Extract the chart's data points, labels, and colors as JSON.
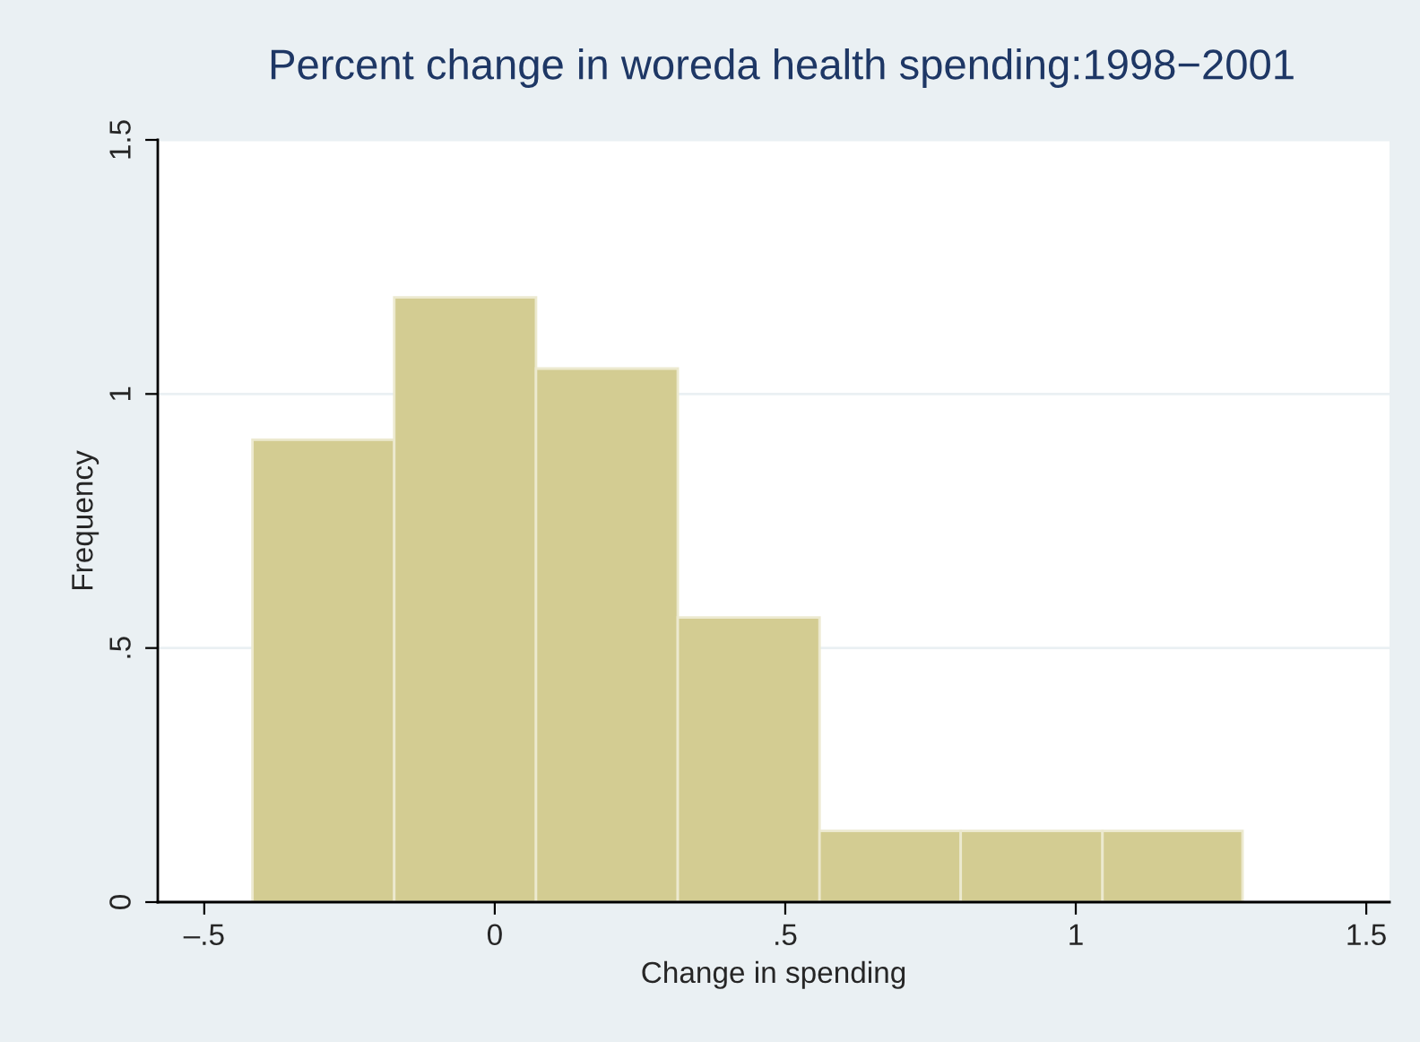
{
  "chart_data": {
    "type": "histogram",
    "title": "Percent change in woreda health spending:1998−2001",
    "xlabel": "Change in spending",
    "ylabel": "Frequency",
    "bins": [
      -0.417,
      -0.173,
      0.071,
      0.315,
      0.559,
      0.802,
      1.046,
      1.287
    ],
    "values": [
      0.91,
      1.19,
      1.05,
      0.56,
      0.14,
      0.14,
      0.14
    ],
    "color": "#d3cc92",
    "xlim": [
      -0.58,
      1.54
    ],
    "xticks": [
      {
        "value": -0.5,
        "label": "–.5"
      },
      0,
      {
        "value": 0.5,
        "label": ".5"
      },
      1,
      1.5
    ],
    "ylim": [
      0,
      1.5
    ],
    "yticks": [
      0,
      {
        "value": 0.5,
        "label": ".5"
      },
      1,
      1.5
    ],
    "grid": "y"
  }
}
